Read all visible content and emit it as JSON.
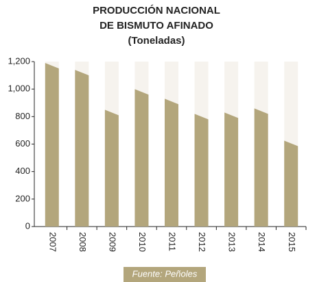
{
  "chart_data": {
    "type": "bar",
    "title_lines": [
      "PRODUCCIÓN NACIONAL",
      "DE BISMUTO AFINADO",
      "(Toneladas)"
    ],
    "categories": [
      "2007",
      "2008",
      "2009",
      "2010",
      "2011",
      "2012",
      "2013",
      "2014",
      "2015"
    ],
    "values": [
      1150,
      1100,
      810,
      960,
      890,
      780,
      790,
      820,
      585
    ],
    "color": "#b3a67c",
    "ylim": [
      0,
      1200
    ],
    "yticks": [
      0,
      200,
      400,
      600,
      800,
      {
        "value": 1000,
        "label": "1,000"
      },
      {
        "value": 1200,
        "label": "1,200"
      }
    ],
    "source": "Fuente: Peñoles"
  }
}
